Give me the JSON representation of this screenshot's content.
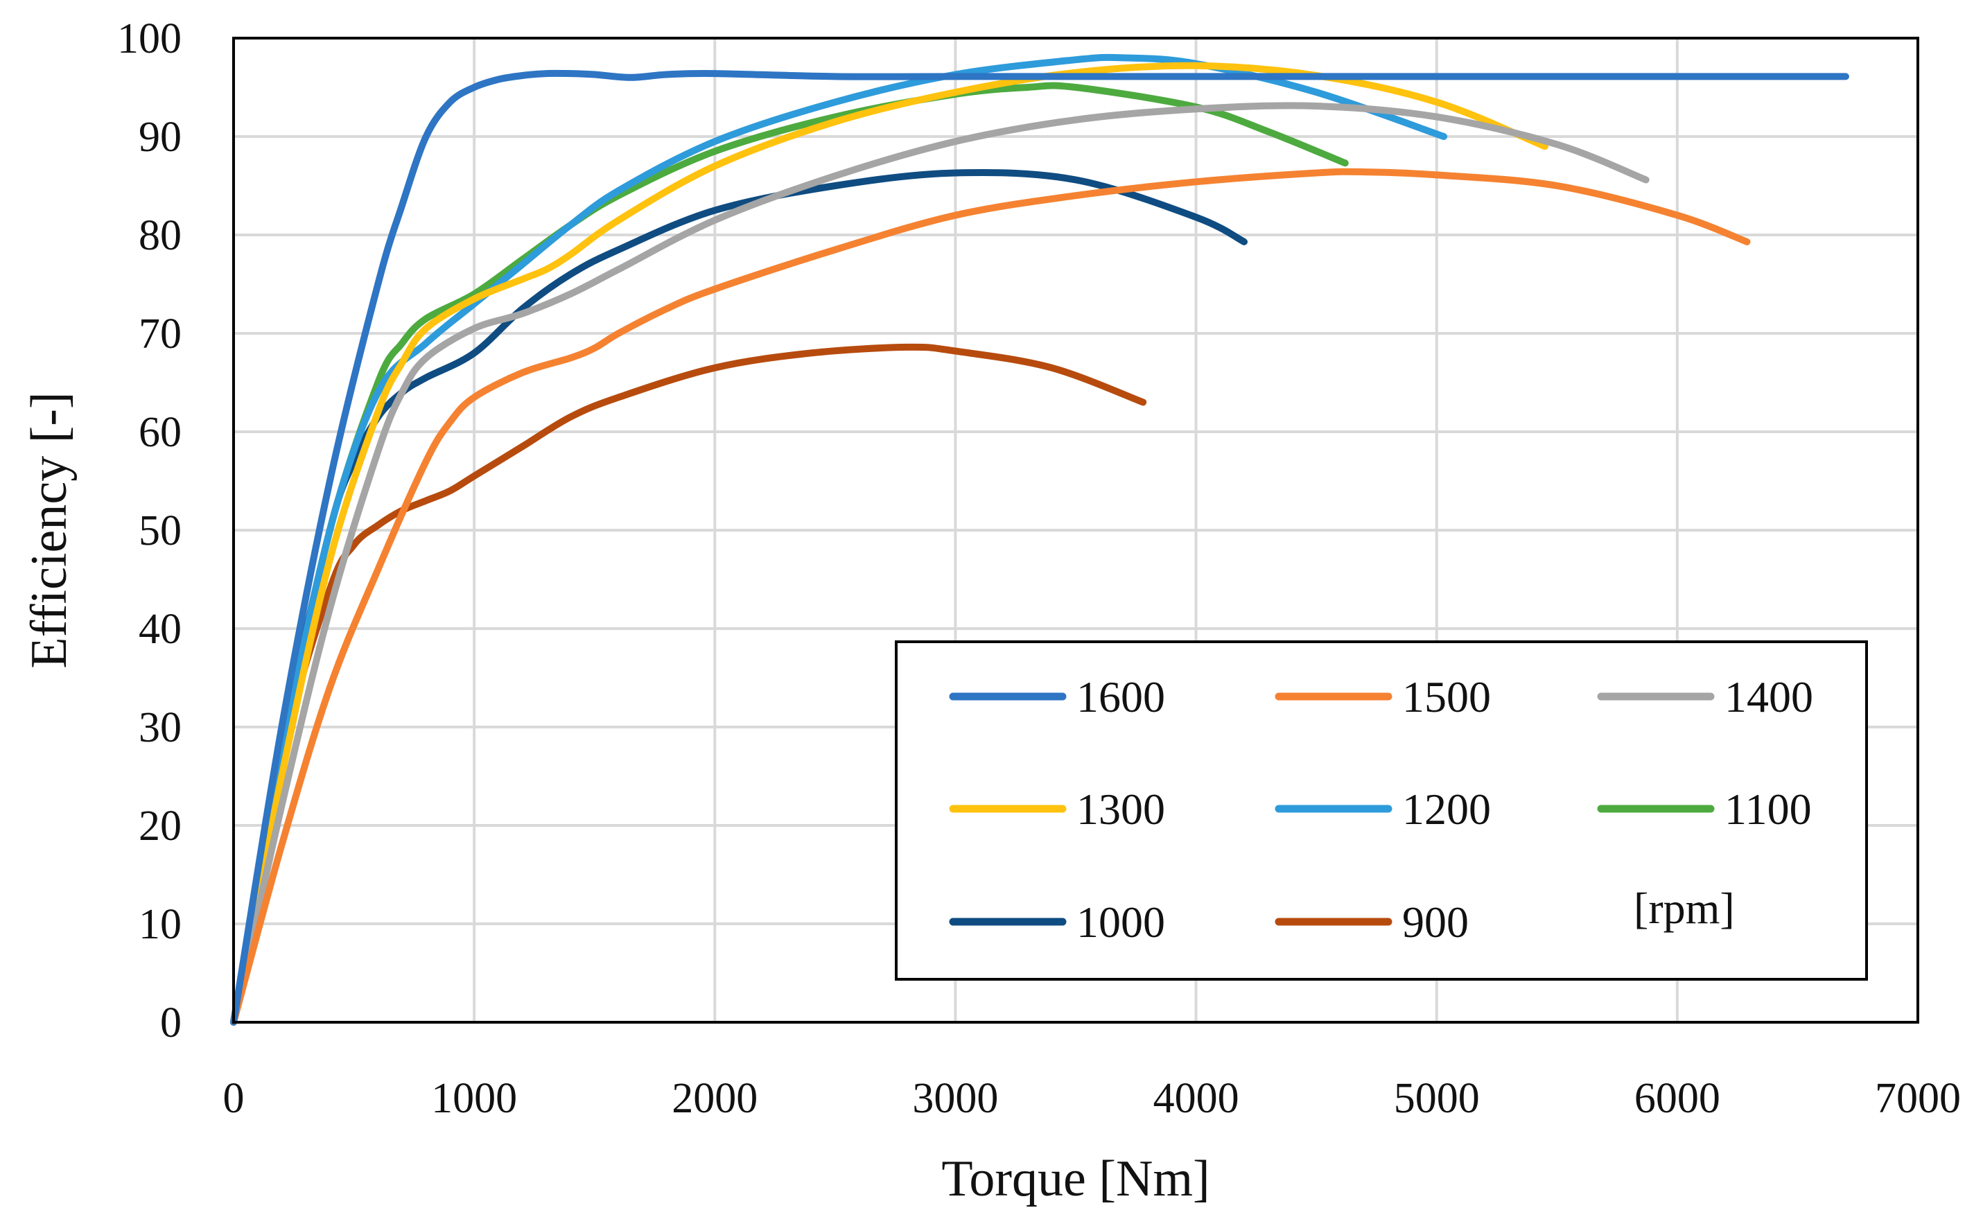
{
  "chart_data": {
    "type": "line",
    "xlabel": "Torque [Nm]",
    "ylabel": "Efficiency [-]",
    "xlim": [
      0,
      7000
    ],
    "ylim": [
      0,
      100
    ],
    "xticks": [
      0,
      1000,
      2000,
      3000,
      4000,
      5000,
      6000,
      7000
    ],
    "yticks": [
      0,
      10,
      20,
      30,
      40,
      50,
      60,
      70,
      80,
      90,
      100
    ],
    "grid": true,
    "legend_position": "bottom-right",
    "legend_unit": "[rpm]",
    "series": [
      {
        "name": "1600",
        "color": "#2E75C4",
        "x": [
          0,
          200,
          400,
          600,
          700,
          800,
          900,
          1000,
          1100,
          1200,
          1300,
          1400,
          1500,
          1650,
          1800,
          2000,
          2500,
          3000,
          4000,
          5000,
          6000,
          6700
        ],
        "y": [
          0,
          30,
          55,
          75,
          83,
          90,
          93.5,
          95,
          95.8,
          96.2,
          96.4,
          96.4,
          96.3,
          96.0,
          96.3,
          96.4,
          96.1,
          96.1,
          96.1,
          96.1,
          96.1,
          96.1
        ]
      },
      {
        "name": "1500",
        "color": "#F58231",
        "x": [
          0,
          200,
          400,
          600,
          800,
          900,
          1000,
          1200,
          1400,
          1500,
          1600,
          1800,
          2000,
          2500,
          3000,
          3500,
          4000,
          4500,
          4700,
          5000,
          5500,
          6000,
          6290
        ],
        "y": [
          0,
          18,
          34,
          46,
          57,
          61,
          63.5,
          66,
          67.5,
          68.5,
          70,
          72.5,
          74.5,
          78.5,
          82,
          84,
          85.4,
          86.3,
          86.4,
          86.1,
          85,
          82,
          79.3
        ]
      },
      {
        "name": "1400",
        "color": "#A5A5A5",
        "x": [
          0,
          200,
          400,
          600,
          700,
          800,
          1000,
          1200,
          1400,
          1600,
          2000,
          2500,
          3000,
          3500,
          4000,
          4500,
          5000,
          5500,
          5870
        ],
        "y": [
          0,
          22,
          42,
          58,
          64,
          67.5,
          70.5,
          72,
          74,
          76.5,
          81.5,
          86,
          89.5,
          91.7,
          92.8,
          93.1,
          92,
          89.2,
          85.6
        ]
      },
      {
        "name": "1300",
        "color": "#FFC20E",
        "x": [
          0,
          200,
          400,
          600,
          700,
          800,
          1000,
          1200,
          1300,
          1400,
          1600,
          2000,
          2500,
          3000,
          3500,
          4000,
          4500,
          5000,
          5450
        ],
        "y": [
          0,
          25,
          47,
          62,
          67,
          70.5,
          73.5,
          75.5,
          76.5,
          78,
          81.5,
          87,
          91.5,
          94.5,
          96.5,
          97.2,
          96.2,
          93.5,
          89
        ]
      },
      {
        "name": "1200",
        "color": "#2E9BDB",
        "x": [
          0,
          200,
          400,
          600,
          800,
          1000,
          1200,
          1400,
          1600,
          2000,
          2500,
          3000,
          3500,
          3700,
          4000,
          4500,
          5030
        ],
        "y": [
          0,
          27,
          50,
          64,
          69,
          73,
          77,
          81,
          84.5,
          89.5,
          93.5,
          96.3,
          97.8,
          98,
          97.4,
          94.5,
          90
        ]
      },
      {
        "name": "1100",
        "color": "#4DAA3F",
        "x": [
          0,
          200,
          400,
          600,
          700,
          800,
          1000,
          1200,
          1400,
          1600,
          2000,
          2500,
          3000,
          3300,
          3500,
          4000,
          4300,
          4620
        ],
        "y": [
          0,
          27,
          50,
          65,
          69,
          71.5,
          74,
          77.5,
          81,
          84,
          88.5,
          92,
          94.3,
          95,
          95,
          93,
          90.5,
          87.3
        ]
      },
      {
        "name": "1000",
        "color": "#0F4C81",
        "x": [
          0,
          200,
          400,
          500,
          600,
          700,
          800,
          1000,
          1200,
          1400,
          1600,
          2000,
          2500,
          3000,
          3500,
          4000,
          4200
        ],
        "y": [
          0,
          28,
          50,
          57,
          61.5,
          64,
          65.5,
          68,
          72.5,
          76,
          78.5,
          82.5,
          85,
          86.3,
          85.6,
          81.8,
          79.3
        ]
      },
      {
        "name": "900",
        "color": "#B74B0E",
        "x": [
          0,
          200,
          400,
          500,
          600,
          700,
          800,
          900,
          1000,
          1200,
          1400,
          1600,
          2000,
          2400,
          2800,
          3000,
          3400,
          3780
        ],
        "y": [
          0,
          27,
          44,
          48.5,
          50.5,
          52,
          53,
          54,
          55.5,
          58.5,
          61.5,
          63.5,
          66.5,
          68,
          68.6,
          68.2,
          66.5,
          63
        ]
      }
    ]
  }
}
